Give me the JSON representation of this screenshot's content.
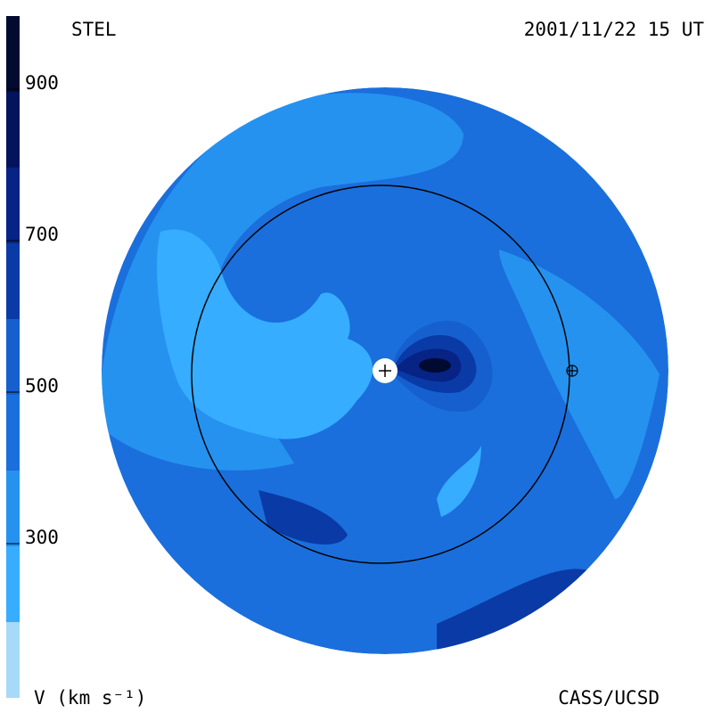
{
  "header": {
    "left": "STEL",
    "right": "2001/11/22 15 UT"
  },
  "colorbar": {
    "label": "V (km s⁻¹)",
    "ticks": [
      900,
      700,
      500,
      300
    ]
  },
  "footer": {
    "right": "CASS/UCSD"
  }
}
